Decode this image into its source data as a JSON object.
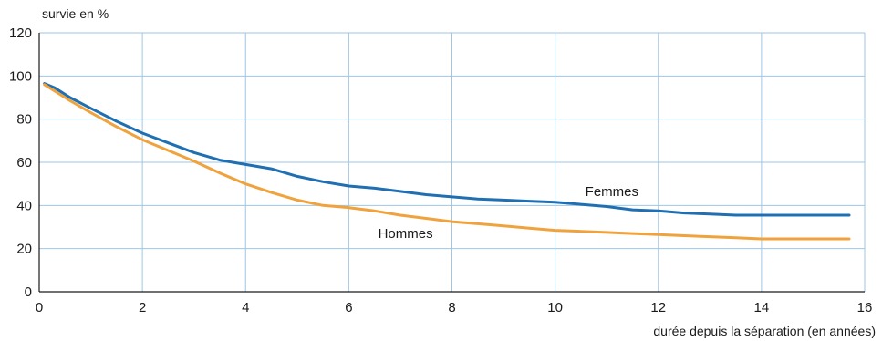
{
  "chart_data": {
    "type": "line",
    "ylabel": "survie en %",
    "xlabel": "durée depuis la séparation (en années)",
    "xlim": [
      0,
      16
    ],
    "ylim": [
      0,
      120
    ],
    "xticks": [
      0,
      2,
      4,
      6,
      8,
      10,
      12,
      14,
      16
    ],
    "yticks": [
      0,
      20,
      40,
      60,
      80,
      100,
      120
    ],
    "grid": true,
    "legend": "inline labels",
    "series": [
      {
        "name": "Femmes",
        "color": "#1f6fb2",
        "points": [
          [
            0.1,
            96.5
          ],
          [
            0.3,
            94.5
          ],
          [
            0.6,
            90
          ],
          [
            1,
            85
          ],
          [
            1.5,
            79
          ],
          [
            2,
            73.5
          ],
          [
            2.5,
            69
          ],
          [
            3,
            64.5
          ],
          [
            3.5,
            61
          ],
          [
            4,
            59
          ],
          [
            4.5,
            57
          ],
          [
            5,
            53.5
          ],
          [
            5.5,
            51
          ],
          [
            6,
            49
          ],
          [
            6.5,
            48
          ],
          [
            7,
            46.5
          ],
          [
            7.5,
            45
          ],
          [
            8,
            44
          ],
          [
            8.5,
            43
          ],
          [
            9,
            42.5
          ],
          [
            9.5,
            42
          ],
          [
            10,
            41.5
          ],
          [
            10.5,
            40.5
          ],
          [
            11,
            39.5
          ],
          [
            11.5,
            38
          ],
          [
            12,
            37.5
          ],
          [
            12.5,
            36.5
          ],
          [
            13,
            36
          ],
          [
            13.5,
            35.5
          ],
          [
            14,
            35.5
          ],
          [
            14.5,
            35.5
          ],
          [
            15,
            35.5
          ],
          [
            15.7,
            35.5
          ]
        ]
      },
      {
        "name": "Hommes",
        "color": "#f0a23c",
        "points": [
          [
            0.1,
            96
          ],
          [
            0.3,
            93
          ],
          [
            0.6,
            88.5
          ],
          [
            1,
            83
          ],
          [
            1.5,
            76.5
          ],
          [
            2,
            70.5
          ],
          [
            2.5,
            65.5
          ],
          [
            3,
            60.5
          ],
          [
            3.5,
            55
          ],
          [
            4,
            50
          ],
          [
            4.5,
            46
          ],
          [
            5,
            42.5
          ],
          [
            5.5,
            40
          ],
          [
            6,
            39
          ],
          [
            6.5,
            37.5
          ],
          [
            7,
            35.5
          ],
          [
            7.5,
            34
          ],
          [
            8,
            32.5
          ],
          [
            8.5,
            31.5
          ],
          [
            9,
            30.5
          ],
          [
            9.5,
            29.5
          ],
          [
            10,
            28.5
          ],
          [
            10.5,
            28
          ],
          [
            11,
            27.5
          ],
          [
            11.5,
            27
          ],
          [
            12,
            26.5
          ],
          [
            12.5,
            26
          ],
          [
            13,
            25.5
          ],
          [
            13.5,
            25
          ],
          [
            14,
            24.5
          ],
          [
            14.5,
            24.5
          ],
          [
            15,
            24.5
          ],
          [
            15.7,
            24.5
          ]
        ]
      }
    ]
  }
}
